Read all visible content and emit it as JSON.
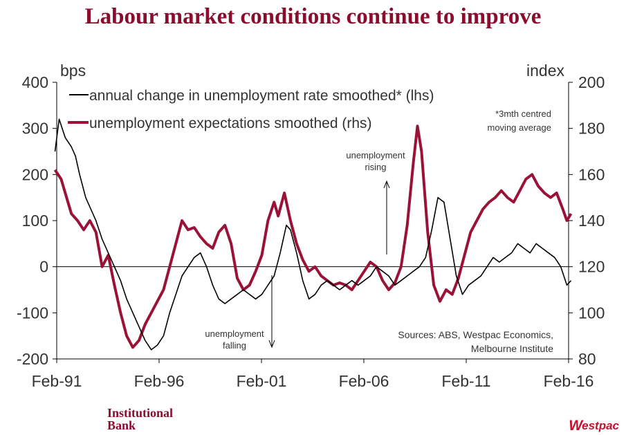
{
  "title": "Labour market conditions continue to improve",
  "footer": {
    "bank_line1": "Institutional",
    "bank_line2": "Bank",
    "logo_w": "W",
    "logo_rest": "estpac"
  },
  "colors": {
    "brand": "#8b0d2e",
    "series_lhs": "#000000",
    "series_rhs": "#9b1238",
    "logo_red": "#c8102e"
  },
  "chart_data": {
    "type": "line",
    "title": "Labour market conditions continue to improve",
    "left_axis": {
      "label": "bps",
      "min": -200,
      "max": 400,
      "ticks": [
        -200,
        -100,
        0,
        100,
        200,
        300,
        400
      ],
      "tick_labels": [
        "-200",
        "-100",
        "0",
        "100",
        "200",
        "300",
        "400"
      ]
    },
    "right_axis": {
      "label": "index",
      "min": 80,
      "max": 200,
      "ticks": [
        80,
        100,
        120,
        140,
        160,
        180,
        200
      ],
      "tick_labels": [
        "80",
        "100",
        "120",
        "140",
        "160",
        "180",
        "200"
      ]
    },
    "x_axis": {
      "min": 1991.083,
      "max": 2016.083,
      "ticks": [
        1991.083,
        1996.083,
        2001.083,
        2006.083,
        2011.083,
        2016.083
      ],
      "tick_labels": [
        "Feb-91",
        "Feb-96",
        "Feb-01",
        "Feb-06",
        "Feb-11",
        "Feb-16"
      ]
    },
    "legend": {
      "position": "top-left",
      "entries": [
        "annual change in unemployment rate smoothed* (lhs)",
        "unemployment expectations smoothed (rhs)"
      ]
    },
    "annotations": {
      "note": [
        "*3mth centred",
        "moving average"
      ],
      "rising": [
        "unemployment",
        "rising"
      ],
      "falling": [
        "unemployment",
        "falling"
      ],
      "sources": [
        "Sources: ABS, Westpac Economics,",
        "Melbourne Institute"
      ]
    },
    "series": [
      {
        "name": "annual change in unemployment rate smoothed* (lhs)",
        "axis": "left",
        "points": [
          [
            1991.0,
            250
          ],
          [
            1991.2,
            320
          ],
          [
            1991.5,
            280
          ],
          [
            1991.8,
            260
          ],
          [
            1992.0,
            240
          ],
          [
            1992.2,
            200
          ],
          [
            1992.5,
            150
          ],
          [
            1992.8,
            120
          ],
          [
            1993.0,
            100
          ],
          [
            1993.3,
            60
          ],
          [
            1993.6,
            30
          ],
          [
            1993.9,
            0
          ],
          [
            1994.2,
            -30
          ],
          [
            1994.5,
            -70
          ],
          [
            1994.8,
            -100
          ],
          [
            1995.1,
            -130
          ],
          [
            1995.4,
            -160
          ],
          [
            1995.7,
            -180
          ],
          [
            1996.0,
            -170
          ],
          [
            1996.3,
            -150
          ],
          [
            1996.6,
            -100
          ],
          [
            1996.9,
            -60
          ],
          [
            1997.2,
            -20
          ],
          [
            1997.5,
            0
          ],
          [
            1997.8,
            20
          ],
          [
            1998.1,
            30
          ],
          [
            1998.4,
            0
          ],
          [
            1998.7,
            -40
          ],
          [
            1999.0,
            -70
          ],
          [
            1999.3,
            -80
          ],
          [
            1999.6,
            -70
          ],
          [
            1999.9,
            -60
          ],
          [
            2000.2,
            -50
          ],
          [
            2000.5,
            -60
          ],
          [
            2000.8,
            -70
          ],
          [
            2001.1,
            -60
          ],
          [
            2001.4,
            -40
          ],
          [
            2001.7,
            -20
          ],
          [
            2002.0,
            30
          ],
          [
            2002.3,
            90
          ],
          [
            2002.5,
            80
          ],
          [
            2002.8,
            30
          ],
          [
            2003.1,
            -30
          ],
          [
            2003.4,
            -70
          ],
          [
            2003.7,
            -60
          ],
          [
            2004.0,
            -40
          ],
          [
            2004.3,
            -30
          ],
          [
            2004.6,
            -40
          ],
          [
            2004.9,
            -50
          ],
          [
            2005.2,
            -40
          ],
          [
            2005.5,
            -30
          ],
          [
            2005.8,
            -40
          ],
          [
            2006.1,
            -30
          ],
          [
            2006.4,
            -20
          ],
          [
            2006.7,
            0
          ],
          [
            2007.0,
            -10
          ],
          [
            2007.3,
            -20
          ],
          [
            2007.6,
            -40
          ],
          [
            2007.9,
            -30
          ],
          [
            2008.2,
            -20
          ],
          [
            2008.5,
            -10
          ],
          [
            2008.8,
            0
          ],
          [
            2009.1,
            20
          ],
          [
            2009.4,
            80
          ],
          [
            2009.7,
            150
          ],
          [
            2010.0,
            140
          ],
          [
            2010.3,
            60
          ],
          [
            2010.6,
            -20
          ],
          [
            2010.9,
            -60
          ],
          [
            2011.2,
            -40
          ],
          [
            2011.5,
            -30
          ],
          [
            2011.8,
            -20
          ],
          [
            2012.1,
            0
          ],
          [
            2012.4,
            20
          ],
          [
            2012.7,
            10
          ],
          [
            2013.0,
            20
          ],
          [
            2013.3,
            30
          ],
          [
            2013.6,
            50
          ],
          [
            2013.9,
            40
          ],
          [
            2014.2,
            30
          ],
          [
            2014.5,
            50
          ],
          [
            2014.8,
            40
          ],
          [
            2015.1,
            30
          ],
          [
            2015.4,
            20
          ],
          [
            2015.7,
            0
          ],
          [
            2016.0,
            -40
          ],
          [
            2016.2,
            -30
          ]
        ]
      },
      {
        "name": "unemployment expectations smoothed (rhs)",
        "axis": "right",
        "points": [
          [
            1991.0,
            162
          ],
          [
            1991.3,
            158
          ],
          [
            1991.5,
            152
          ],
          [
            1991.8,
            143
          ],
          [
            1992.1,
            140
          ],
          [
            1992.4,
            136
          ],
          [
            1992.7,
            140
          ],
          [
            1993.0,
            135
          ],
          [
            1993.3,
            120
          ],
          [
            1993.6,
            125
          ],
          [
            1993.9,
            112
          ],
          [
            1994.2,
            100
          ],
          [
            1994.5,
            90
          ],
          [
            1994.8,
            85
          ],
          [
            1995.1,
            88
          ],
          [
            1995.4,
            95
          ],
          [
            1995.7,
            100
          ],
          [
            1996.0,
            105
          ],
          [
            1996.3,
            110
          ],
          [
            1996.6,
            120
          ],
          [
            1996.9,
            130
          ],
          [
            1997.2,
            140
          ],
          [
            1997.5,
            136
          ],
          [
            1997.8,
            137
          ],
          [
            1998.1,
            133
          ],
          [
            1998.4,
            130
          ],
          [
            1998.7,
            128
          ],
          [
            1999.0,
            135
          ],
          [
            1999.3,
            138
          ],
          [
            1999.6,
            130
          ],
          [
            1999.9,
            115
          ],
          [
            2000.2,
            110
          ],
          [
            2000.5,
            112
          ],
          [
            2000.8,
            118
          ],
          [
            2001.1,
            125
          ],
          [
            2001.4,
            140
          ],
          [
            2001.7,
            148
          ],
          [
            2001.9,
            142
          ],
          [
            2002.2,
            152
          ],
          [
            2002.5,
            140
          ],
          [
            2002.8,
            130
          ],
          [
            2003.1,
            123
          ],
          [
            2003.4,
            118
          ],
          [
            2003.7,
            120
          ],
          [
            2004.0,
            116
          ],
          [
            2004.3,
            114
          ],
          [
            2004.6,
            112
          ],
          [
            2004.9,
            113
          ],
          [
            2005.2,
            112
          ],
          [
            2005.5,
            110
          ],
          [
            2005.8,
            114
          ],
          [
            2006.1,
            118
          ],
          [
            2006.4,
            122
          ],
          [
            2006.7,
            120
          ],
          [
            2007.0,
            114
          ],
          [
            2007.3,
            110
          ],
          [
            2007.6,
            113
          ],
          [
            2007.9,
            120
          ],
          [
            2008.2,
            138
          ],
          [
            2008.5,
            165
          ],
          [
            2008.7,
            181
          ],
          [
            2008.9,
            170
          ],
          [
            2009.2,
            135
          ],
          [
            2009.5,
            112
          ],
          [
            2009.8,
            105
          ],
          [
            2010.1,
            110
          ],
          [
            2010.4,
            108
          ],
          [
            2010.7,
            115
          ],
          [
            2011.0,
            125
          ],
          [
            2011.3,
            135
          ],
          [
            2011.6,
            140
          ],
          [
            2011.9,
            145
          ],
          [
            2012.2,
            148
          ],
          [
            2012.5,
            150
          ],
          [
            2012.8,
            153
          ],
          [
            2013.1,
            150
          ],
          [
            2013.4,
            148
          ],
          [
            2013.7,
            153
          ],
          [
            2014.0,
            158
          ],
          [
            2014.3,
            160
          ],
          [
            2014.6,
            155
          ],
          [
            2014.9,
            152
          ],
          [
            2015.2,
            150
          ],
          [
            2015.5,
            152
          ],
          [
            2015.8,
            145
          ],
          [
            2016.0,
            140
          ],
          [
            2016.2,
            143
          ]
        ]
      }
    ]
  }
}
